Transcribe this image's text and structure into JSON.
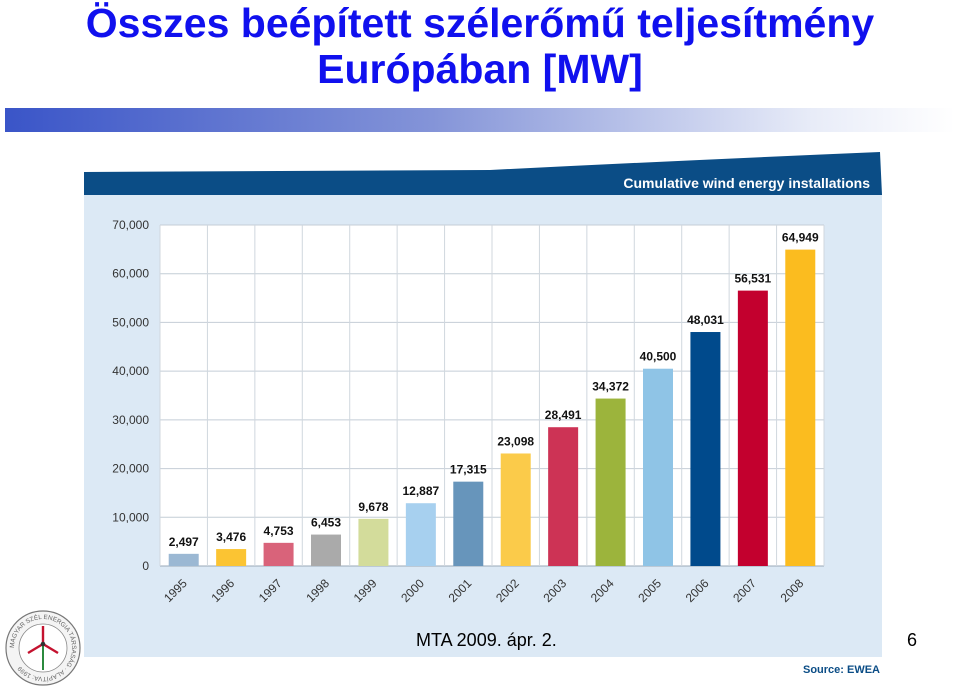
{
  "slide": {
    "title_line1": "Összes beépített szélerőmű teljesítmény",
    "title_line2": "Európában [MW]",
    "footer": "MTA 2009. ápr. 2.",
    "page_number": "6",
    "logo_text": "MAGYAR SZÉL ENERGIA TÁRSASÁG · ALAPÍTVA: 1999"
  },
  "colors": {
    "title": "#1010ee",
    "header_band": "#0b4d86",
    "plot_bg": "#dce9f5"
  },
  "chart_data": {
    "type": "bar",
    "title": "Cumulative wind energy installations",
    "source": "Source: EWEA",
    "xlabel": "",
    "ylabel": "",
    "ylim": [
      0,
      70000
    ],
    "yticks": [
      0,
      10000,
      20000,
      30000,
      40000,
      50000,
      60000,
      70000
    ],
    "ytick_labels": [
      "0",
      "10,000",
      "20,000",
      "30,000",
      "40,000",
      "50,000",
      "60,000",
      "70,000"
    ],
    "grid": true,
    "categories": [
      "1995",
      "1996",
      "1997",
      "1998",
      "1999",
      "2000",
      "2001",
      "2002",
      "2003",
      "2004",
      "2005",
      "2006",
      "2007",
      "2008"
    ],
    "values": [
      2497,
      3476,
      4753,
      6453,
      9678,
      12887,
      17315,
      23098,
      28491,
      34372,
      40500,
      48031,
      56531,
      64949
    ],
    "value_labels": [
      "2,497",
      "3,476",
      "4,753",
      "6,453",
      "9,678",
      "12,887",
      "17,315",
      "23,098",
      "28,491",
      "34,372",
      "40,500",
      "48,031",
      "56,531",
      "64,949"
    ],
    "bar_colors": [
      "#9bb8d3",
      "#fbc433",
      "#d9637a",
      "#aaaaaa",
      "#d3dc9b",
      "#a7d0ef",
      "#6795bb",
      "#fbcb4a",
      "#cd3355",
      "#9cb43c",
      "#8fc4e6",
      "#004a8c",
      "#c3002e",
      "#fbbc1f"
    ]
  }
}
